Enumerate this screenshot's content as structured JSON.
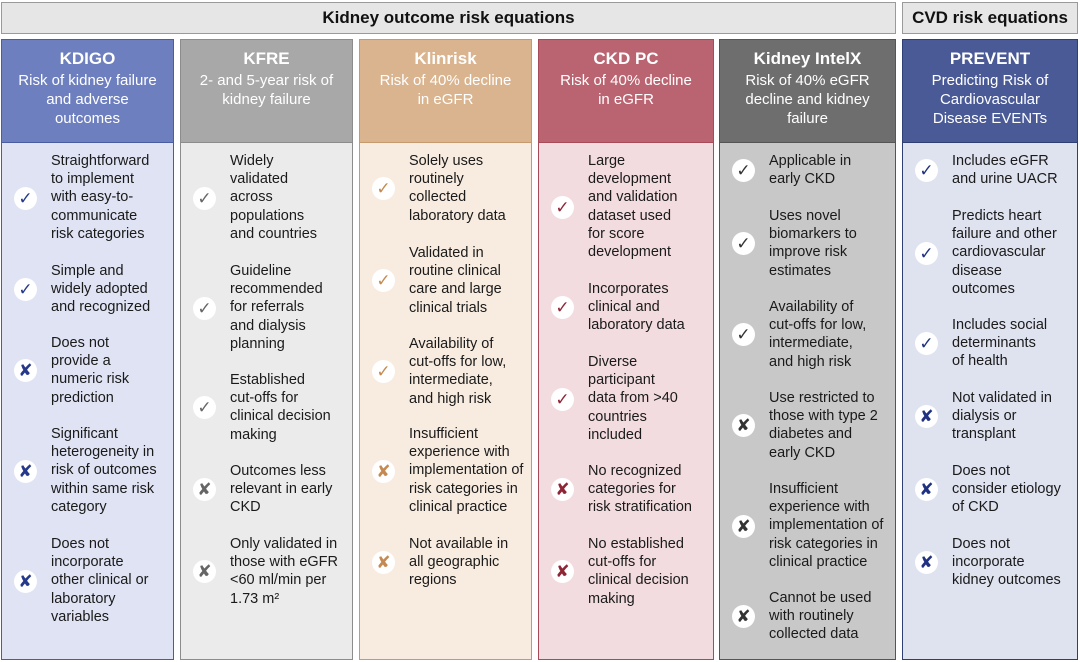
{
  "headers": {
    "kidney": "Kidney outcome risk equations",
    "cvd": "CVD risk equations"
  },
  "icons": {
    "check": "✓",
    "cross": "✘"
  },
  "columns": [
    {
      "id": "kdigo",
      "name": "KDIGO",
      "subtitle": "Risk of kidney failure\nand adverse\noutcomes",
      "items": [
        {
          "mark": "check",
          "text": "Straightforward\nto implement\nwith easy-to-\ncommunicate\nrisk categories"
        },
        {
          "mark": "check",
          "text": "Simple and\nwidely adopted\nand recognized"
        },
        {
          "mark": "cross",
          "text": "Does not\nprovide a\nnumeric risk\nprediction"
        },
        {
          "mark": "cross",
          "text": "Significant\nheterogeneity in\nrisk of outcomes\nwithin same risk\ncategory"
        },
        {
          "mark": "cross",
          "text": "Does not\nincorporate\nother clinical or\nlaboratory\nvariables"
        }
      ]
    },
    {
      "id": "kfre",
      "name": "KFRE",
      "subtitle": "2- and 5-year risk of\nkidney failure",
      "items": [
        {
          "mark": "check",
          "text": "Widely\nvalidated\nacross\npopulations\nand countries"
        },
        {
          "mark": "check",
          "text": "Guideline\nrecommended\nfor referrals\nand dialysis\nplanning"
        },
        {
          "mark": "check",
          "text": "Established\ncut-offs for\nclinical decision\nmaking"
        },
        {
          "mark": "cross",
          "text": "Outcomes less\nrelevant in early\nCKD"
        },
        {
          "mark": "cross",
          "text": "Only validated in\nthose with eGFR\n<60 ml/min per\n1.73 m²"
        }
      ]
    },
    {
      "id": "klinrisk",
      "name": "Klinrisk",
      "subtitle": "Risk of 40% decline\nin eGFR",
      "items": [
        {
          "mark": "check",
          "text": "Solely uses\nroutinely\ncollected\nlaboratory data"
        },
        {
          "mark": "check",
          "text": "Validated in\nroutine clinical\ncare and large\nclinical trials"
        },
        {
          "mark": "check",
          "text": "Availability of\ncut-offs for low,\nintermediate,\nand high risk"
        },
        {
          "mark": "cross",
          "text": "Insufficient\nexperience with\nimplementation of\nrisk categories in\nclinical practice"
        },
        {
          "mark": "cross",
          "text": "Not available in\nall geographic\nregions"
        }
      ]
    },
    {
      "id": "ckdpc",
      "name": "CKD PC",
      "subtitle": "Risk of 40% decline\nin eGFR",
      "items": [
        {
          "mark": "check",
          "text": "Large\ndevelopment\nand validation\ndataset used\nfor score\ndevelopment"
        },
        {
          "mark": "check",
          "text": "Incorporates\nclinical and\nlaboratory data"
        },
        {
          "mark": "check",
          "text": "Diverse\nparticipant\ndata from >40\ncountries\nincluded"
        },
        {
          "mark": "cross",
          "text": "No recognized\ncategories for\nrisk stratification"
        },
        {
          "mark": "cross",
          "text": "No established\ncut-offs for\nclinical decision\nmaking"
        }
      ]
    },
    {
      "id": "intelx",
      "name": "Kidney IntelX",
      "subtitle": "Risk of 40% eGFR\ndecline and kidney\nfailure",
      "items": [
        {
          "mark": "check",
          "text": "Applicable in\nearly CKD"
        },
        {
          "mark": "check",
          "text": "Uses novel\nbiomarkers to\nimprove risk\nestimates"
        },
        {
          "mark": "check",
          "text": "Availability of\ncut-offs for low,\nintermediate,\nand high risk"
        },
        {
          "mark": "cross",
          "text": "Use restricted to\nthose with type 2\ndiabetes and\nearly CKD"
        },
        {
          "mark": "cross",
          "text": "Insufficient\nexperience with\nimplementation of\nrisk categories in\nclinical practice"
        },
        {
          "mark": "cross",
          "text": "Cannot be used\nwith routinely\ncollected data"
        }
      ]
    },
    {
      "id": "prevent",
      "name": "PREVENT",
      "subtitle": "Predicting Risk of\nCardiovascular\nDisease  EVENTs",
      "items": [
        {
          "mark": "check",
          "text": "Includes eGFR\nand urine UACR"
        },
        {
          "mark": "check",
          "text": "Predicts heart\nfailure and other\ncardiovascular\ndisease\noutcomes"
        },
        {
          "mark": "check",
          "text": "Includes social\ndeterminants\nof health"
        },
        {
          "mark": "cross",
          "text": "Not validated in\ndialysis or\ntransplant"
        },
        {
          "mark": "cross",
          "text": "Does not\nconsider etiology\nof CKD"
        },
        {
          "mark": "cross",
          "text": "Does not\nincorporate\nkidney outcomes"
        }
      ]
    }
  ]
}
